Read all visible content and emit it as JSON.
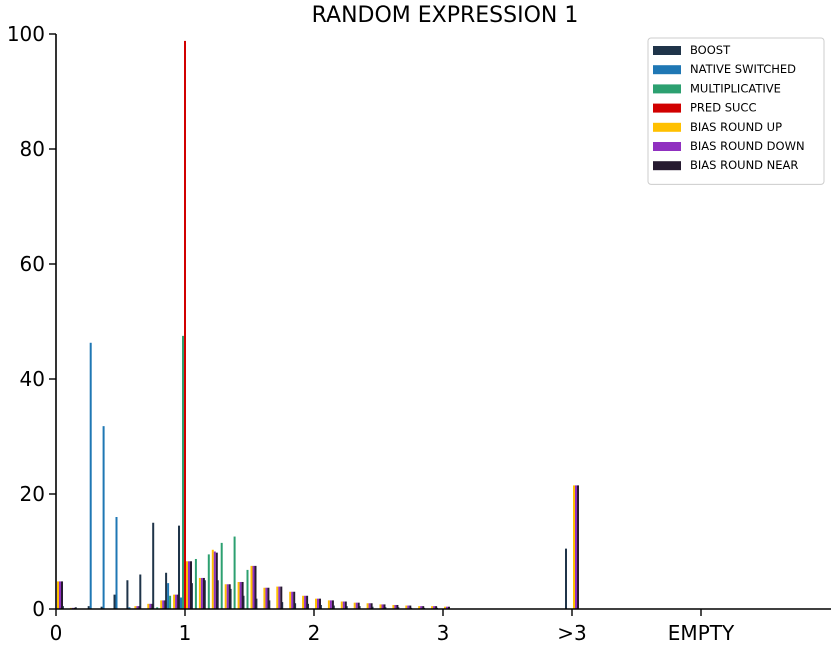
{
  "chart_data": {
    "type": "bar",
    "title": "RANDOM EXPRESSION 1",
    "xlabel": "",
    "ylabel": "",
    "ylim": [
      0,
      100
    ],
    "yticks": [
      0,
      20,
      40,
      60,
      80,
      100
    ],
    "xticks": [
      {
        "value": 0,
        "label": "0"
      },
      {
        "value": 1,
        "label": "1"
      },
      {
        "value": 2,
        "label": "2"
      },
      {
        "value": 3,
        "label": "3"
      },
      {
        "value": 4,
        "label": ">3"
      },
      {
        "value": 5,
        "label": "EMPTY"
      }
    ],
    "xlim": [
      0,
      6
    ],
    "legend_position": "top-right",
    "series": [
      {
        "name": "BOOST",
        "color": "#1f3449",
        "points": [
          [
            0.1,
            0.5
          ],
          [
            0.2,
            0.3
          ],
          [
            0.3,
            0.5
          ],
          [
            0.4,
            0.4
          ],
          [
            0.5,
            2.5
          ],
          [
            0.6,
            5.0
          ],
          [
            0.7,
            6.0
          ],
          [
            0.8,
            15.0
          ],
          [
            0.9,
            6.3
          ],
          [
            1.0,
            14.5
          ],
          [
            1.1,
            4.5
          ],
          [
            1.2,
            5.0
          ],
          [
            1.3,
            5.0
          ],
          [
            1.4,
            3.5
          ],
          [
            1.5,
            2.3
          ],
          [
            1.6,
            1.8
          ],
          [
            1.7,
            1.5
          ],
          [
            1.8,
            1.2
          ],
          [
            1.9,
            1.0
          ],
          [
            2.0,
            0.9
          ],
          [
            2.1,
            0.7
          ],
          [
            2.2,
            0.6
          ],
          [
            2.3,
            0.5
          ],
          [
            2.4,
            0.5
          ],
          [
            2.5,
            0.4
          ],
          [
            2.6,
            0.3
          ],
          [
            2.7,
            0.3
          ],
          [
            2.8,
            0.2
          ],
          [
            2.9,
            0.2
          ],
          [
            3.0,
            0.2
          ],
          [
            4.0,
            10.5
          ]
        ]
      },
      {
        "name": "NATIVE SWITCHED",
        "color": "#1f77b4",
        "points": [
          [
            0.3,
            46.3
          ],
          [
            0.4,
            31.8
          ],
          [
            0.5,
            16.0
          ],
          [
            0.6,
            0.3
          ],
          [
            0.9,
            4.5
          ],
          [
            1.0,
            2.0
          ]
        ]
      },
      {
        "name": "MULTIPLICATIVE",
        "color": "#2ca070",
        "points": [
          [
            0.8,
            0.3
          ],
          [
            0.9,
            2.3
          ],
          [
            1.0,
            47.5
          ],
          [
            1.1,
            8.7
          ],
          [
            1.2,
            9.5
          ],
          [
            1.3,
            11.5
          ],
          [
            1.4,
            12.6
          ],
          [
            1.5,
            6.8
          ]
        ]
      },
      {
        "name": "PRED SUCC",
        "color": "#d10000",
        "points": [
          [
            1.0,
            98.8
          ]
        ]
      },
      {
        "name": "BIAS ROUND UP",
        "color": "#ffc000",
        "points": [
          [
            0.0,
            4.8
          ],
          [
            0.1,
            0.2
          ],
          [
            0.6,
            0.5
          ],
          [
            0.7,
            0.9
          ],
          [
            0.8,
            1.5
          ],
          [
            0.9,
            2.5
          ],
          [
            1.0,
            8.3
          ],
          [
            1.1,
            5.4
          ],
          [
            1.2,
            10.3
          ],
          [
            1.3,
            4.3
          ],
          [
            1.4,
            4.7
          ],
          [
            1.5,
            7.5
          ],
          [
            1.6,
            3.7
          ],
          [
            1.7,
            3.9
          ],
          [
            1.8,
            3.0
          ],
          [
            1.9,
            2.3
          ],
          [
            2.0,
            1.8
          ],
          [
            2.1,
            1.5
          ],
          [
            2.2,
            1.3
          ],
          [
            2.3,
            1.1
          ],
          [
            2.4,
            1.0
          ],
          [
            2.5,
            0.8
          ],
          [
            2.6,
            0.7
          ],
          [
            2.7,
            0.6
          ],
          [
            2.8,
            0.5
          ],
          [
            2.9,
            0.5
          ],
          [
            3.0,
            0.4
          ],
          [
            4.0,
            21.5
          ]
        ]
      },
      {
        "name": "BIAS ROUND DOWN",
        "color": "#9030c0",
        "points": [
          [
            0.0,
            4.8
          ],
          [
            0.1,
            0.2
          ],
          [
            0.6,
            0.5
          ],
          [
            0.7,
            0.9
          ],
          [
            0.8,
            1.5
          ],
          [
            0.9,
            2.5
          ],
          [
            1.0,
            8.3
          ],
          [
            1.1,
            5.4
          ],
          [
            1.2,
            10.0
          ],
          [
            1.3,
            4.3
          ],
          [
            1.4,
            4.7
          ],
          [
            1.5,
            7.5
          ],
          [
            1.6,
            3.7
          ],
          [
            1.7,
            3.9
          ],
          [
            1.8,
            3.0
          ],
          [
            1.9,
            2.3
          ],
          [
            2.0,
            1.8
          ],
          [
            2.1,
            1.5
          ],
          [
            2.2,
            1.3
          ],
          [
            2.3,
            1.1
          ],
          [
            2.4,
            1.0
          ],
          [
            2.5,
            0.8
          ],
          [
            2.6,
            0.7
          ],
          [
            2.7,
            0.6
          ],
          [
            2.8,
            0.5
          ],
          [
            2.9,
            0.5
          ],
          [
            3.0,
            0.4
          ],
          [
            4.0,
            21.5
          ]
        ]
      },
      {
        "name": "BIAS ROUND NEAR",
        "color": "#261a30",
        "points": [
          [
            0.0,
            4.8
          ],
          [
            0.1,
            0.2
          ],
          [
            0.6,
            0.5
          ],
          [
            0.7,
            0.9
          ],
          [
            0.8,
            1.5
          ],
          [
            0.9,
            2.5
          ],
          [
            1.0,
            8.3
          ],
          [
            1.1,
            5.4
          ],
          [
            1.2,
            9.8
          ],
          [
            1.3,
            4.3
          ],
          [
            1.4,
            4.7
          ],
          [
            1.5,
            7.5
          ],
          [
            1.6,
            3.7
          ],
          [
            1.7,
            3.9
          ],
          [
            1.8,
            3.0
          ],
          [
            1.9,
            2.3
          ],
          [
            2.0,
            1.8
          ],
          [
            2.1,
            1.5
          ],
          [
            2.2,
            1.3
          ],
          [
            2.3,
            1.1
          ],
          [
            2.4,
            1.0
          ],
          [
            2.5,
            0.8
          ],
          [
            2.6,
            0.7
          ],
          [
            2.7,
            0.6
          ],
          [
            2.8,
            0.5
          ],
          [
            2.9,
            0.5
          ],
          [
            3.0,
            0.4
          ],
          [
            4.0,
            21.5
          ]
        ]
      }
    ]
  }
}
